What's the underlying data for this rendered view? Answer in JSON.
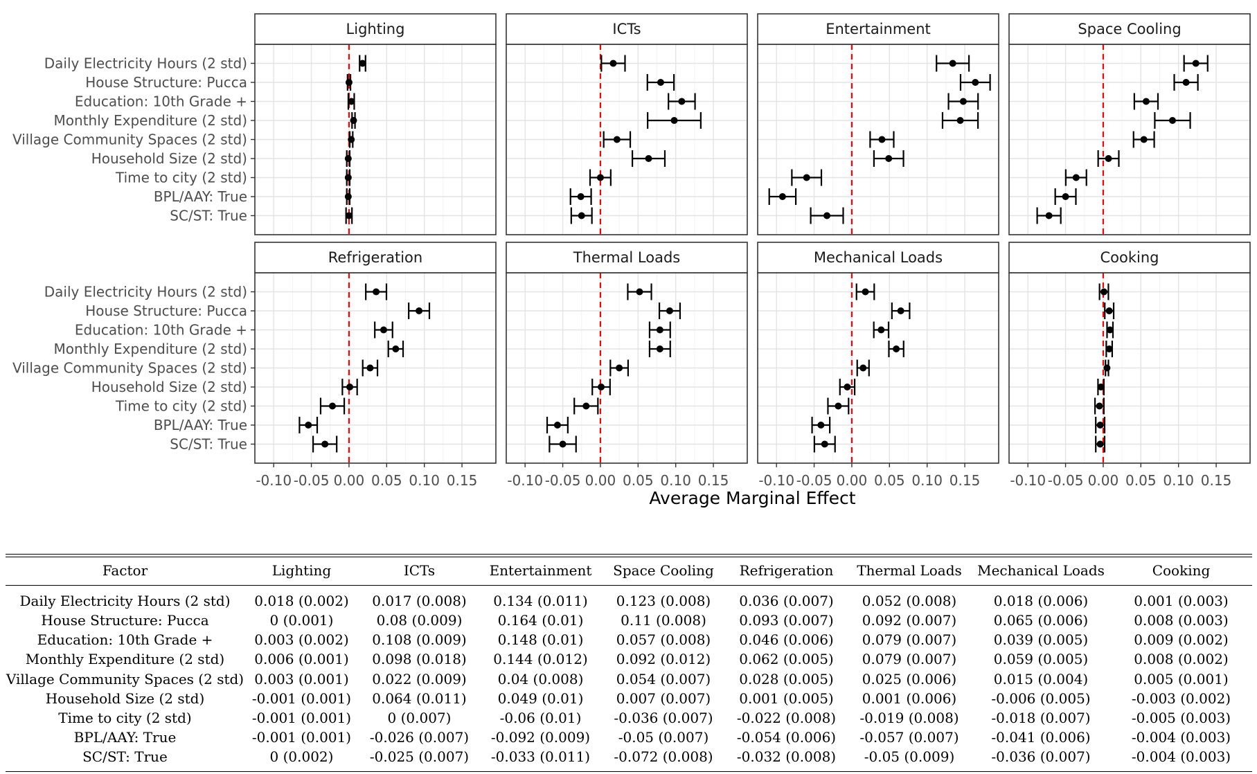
{
  "chart_data": {
    "type": "coefficient-plot",
    "xlabel": "Average Marginal Effect",
    "xlim": [
      -0.125,
      0.195
    ],
    "xticks": [
      -0.1,
      -0.05,
      0.0,
      0.05,
      0.1,
      0.15
    ],
    "xtick_labels": [
      "-0.10",
      "-0.05",
      "0.00",
      "0.05",
      "0.10",
      "0.15"
    ],
    "reference_line": 0,
    "reference_line_color": "#ff0000",
    "grid": true,
    "factors": [
      "Daily Electricity Hours (2 std)",
      "House Structure: Pucca",
      "Education: 10th Grade +",
      "Monthly Expenditure (2 std)",
      "Village Community Spaces (2 std)",
      "Household Size (2 std)",
      "Time to city (2 std)",
      "BPL/AAY: True",
      "SC/ST: True"
    ],
    "panels": [
      {
        "title": "Lighting",
        "estimates": [
          0.018,
          0,
          0.003,
          0.006,
          0.003,
          -0.001,
          -0.001,
          -0.001,
          0
        ],
        "std_errors": [
          0.002,
          0.001,
          0.002,
          0.001,
          0.001,
          0.001,
          0.001,
          0.001,
          0.002
        ]
      },
      {
        "title": "ICTs",
        "estimates": [
          0.017,
          0.08,
          0.108,
          0.098,
          0.022,
          0.064,
          0,
          -0.026,
          -0.025
        ],
        "std_errors": [
          0.008,
          0.009,
          0.009,
          0.018,
          0.009,
          0.011,
          0.007,
          0.007,
          0.007
        ]
      },
      {
        "title": "Entertainment",
        "estimates": [
          0.134,
          0.164,
          0.148,
          0.144,
          0.04,
          0.049,
          -0.06,
          -0.092,
          -0.033
        ],
        "std_errors": [
          0.011,
          0.01,
          0.01,
          0.012,
          0.008,
          0.01,
          0.01,
          0.009,
          0.011
        ]
      },
      {
        "title": "Space Cooling",
        "estimates": [
          0.123,
          0.11,
          0.057,
          0.092,
          0.054,
          0.007,
          -0.036,
          -0.05,
          -0.072
        ],
        "std_errors": [
          0.008,
          0.008,
          0.008,
          0.012,
          0.007,
          0.007,
          0.007,
          0.007,
          0.008
        ]
      },
      {
        "title": "Refrigeration",
        "estimates": [
          0.036,
          0.093,
          0.046,
          0.062,
          0.028,
          0.001,
          -0.022,
          -0.054,
          -0.032
        ],
        "std_errors": [
          0.007,
          0.007,
          0.006,
          0.005,
          0.005,
          0.005,
          0.008,
          0.006,
          0.008
        ]
      },
      {
        "title": "Thermal Loads",
        "estimates": [
          0.052,
          0.092,
          0.079,
          0.079,
          0.025,
          0.001,
          -0.019,
          -0.057,
          -0.05
        ],
        "std_errors": [
          0.008,
          0.007,
          0.007,
          0.007,
          0.006,
          0.006,
          0.008,
          0.007,
          0.009
        ]
      },
      {
        "title": "Mechanical Loads",
        "estimates": [
          0.018,
          0.065,
          0.039,
          0.059,
          0.015,
          -0.006,
          -0.018,
          -0.041,
          -0.036
        ],
        "std_errors": [
          0.006,
          0.006,
          0.005,
          0.005,
          0.004,
          0.005,
          0.007,
          0.006,
          0.007
        ]
      },
      {
        "title": "Cooking",
        "estimates": [
          0.001,
          0.008,
          0.009,
          0.008,
          0.005,
          -0.003,
          -0.005,
          -0.004,
          -0.004
        ],
        "std_errors": [
          0.003,
          0.003,
          0.002,
          0.002,
          0.001,
          0.002,
          0.003,
          0.003,
          0.003
        ]
      }
    ]
  },
  "table": {
    "headers": [
      "Factor",
      "Lighting",
      "ICTs",
      "Entertainment",
      "Space Cooling",
      "Refrigeration",
      "Thermal Loads",
      "Mechanical Loads",
      "Cooking"
    ],
    "rows": [
      [
        "Daily Electricity Hours (2 std)",
        "0.018 (0.002)",
        "0.017 (0.008)",
        "0.134 (0.011)",
        "0.123 (0.008)",
        "0.036 (0.007)",
        "0.052 (0.008)",
        "0.018 (0.006)",
        "0.001 (0.003)"
      ],
      [
        "House Structure: Pucca",
        "0 (0.001)",
        "0.08 (0.009)",
        "0.164 (0.01)",
        "0.11 (0.008)",
        "0.093 (0.007)",
        "0.092 (0.007)",
        "0.065 (0.006)",
        "0.008 (0.003)"
      ],
      [
        "Education: 10th Grade +",
        "0.003 (0.002)",
        "0.108 (0.009)",
        "0.148 (0.01)",
        "0.057 (0.008)",
        "0.046 (0.006)",
        "0.079 (0.007)",
        "0.039 (0.005)",
        "0.009 (0.002)"
      ],
      [
        "Monthly Expenditure (2 std)",
        "0.006 (0.001)",
        "0.098 (0.018)",
        "0.144 (0.012)",
        "0.092 (0.012)",
        "0.062 (0.005)",
        "0.079 (0.007)",
        "0.059 (0.005)",
        "0.008 (0.002)"
      ],
      [
        "Village Community Spaces (2 std)",
        "0.003 (0.001)",
        "0.022 (0.009)",
        "0.04 (0.008)",
        "0.054 (0.007)",
        "0.028 (0.005)",
        "0.025 (0.006)",
        "0.015 (0.004)",
        "0.005 (0.001)"
      ],
      [
        "Household Size (2 std)",
        "-0.001 (0.001)",
        "0.064 (0.011)",
        "0.049 (0.01)",
        "0.007 (0.007)",
        "0.001 (0.005)",
        "0.001 (0.006)",
        "-0.006 (0.005)",
        "-0.003 (0.002)"
      ],
      [
        "Time to city (2 std)",
        "-0.001 (0.001)",
        "0 (0.007)",
        "-0.06 (0.01)",
        "-0.036 (0.007)",
        "-0.022 (0.008)",
        "-0.019 (0.008)",
        "-0.018 (0.007)",
        "-0.005 (0.003)"
      ],
      [
        "BPL/AAY: True",
        "-0.001 (0.001)",
        "-0.026 (0.007)",
        "-0.092 (0.009)",
        "-0.05 (0.007)",
        "-0.054 (0.006)",
        "-0.057 (0.007)",
        "-0.041 (0.006)",
        "-0.004 (0.003)"
      ],
      [
        "SC/ST: True",
        "0 (0.002)",
        "-0.025 (0.007)",
        "-0.033 (0.011)",
        "-0.072 (0.008)",
        "-0.032 (0.008)",
        "-0.05 (0.009)",
        "-0.036 (0.007)",
        "-0.004 (0.003)"
      ]
    ]
  }
}
